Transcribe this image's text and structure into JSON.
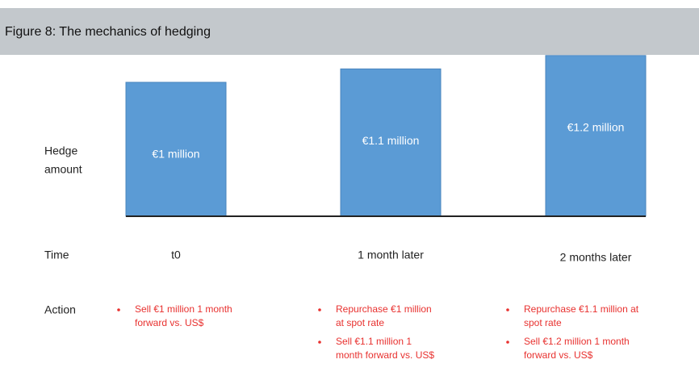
{
  "chart_data": {
    "type": "bar",
    "title": "Figure 8: The mechanics of hedging",
    "y_label": [
      "Hedge",
      "amount"
    ],
    "x_label": "Time",
    "action_label": "Action",
    "categories": [
      "t0",
      "1 month later",
      "2 months later"
    ],
    "values": [
      1,
      1.1,
      1.2
    ],
    "value_labels": [
      "€1 million",
      "€1.1 million",
      "€1.2 million"
    ],
    "color": "#5b9bd5",
    "actions": [
      [
        [
          "Sell €1 million 1 month",
          "forward vs. US$"
        ]
      ],
      [
        [
          "Repurchase €1 million",
          "at spot rate"
        ],
        [
          "Sell €1.1 million 1",
          "month forward vs. US$"
        ]
      ],
      [
        [
          "Repurchase €1.1 million at",
          "spot rate"
        ],
        [
          "Sell €1.2 million 1 month",
          "forward vs. US$"
        ]
      ]
    ]
  }
}
